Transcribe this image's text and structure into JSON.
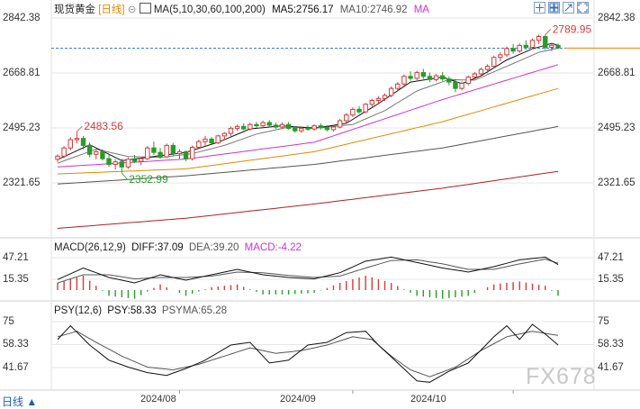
{
  "header": {
    "instrument": "现货黄金",
    "period": "[日线]",
    "ma_label": "MA(5,10,30,60,100,200)",
    "ma5": "MA5:2756.17",
    "ma10": "MA10:2746.92",
    "ma_more": "MA"
  },
  "macd_header": {
    "label": "MACD(26,12,9)",
    "diff": "DIFF:37.09",
    "dea": "DEA:39.20",
    "macd": "MACD:-4.22"
  },
  "psy_header": {
    "label": "PSY(12,6)",
    "psy": "PSY:58.33",
    "psyma": "PSYMA:65.28"
  },
  "bottom": {
    "period_tab": "日线 ▲"
  },
  "watermark": "FX678",
  "colors": {
    "up": "#d23c3c",
    "down": "#2a9a2a",
    "ma5": "#111111",
    "ma10": "#777777",
    "ma30": "#cc33cc",
    "ma60": "#e08a00",
    "ma100": "#555555",
    "ma200": "#b02020",
    "diff": "#111111",
    "dea": "#555555",
    "psy": "#111111",
    "psyma": "#555555",
    "grid": "#e6e6e6",
    "axis": "#999999"
  },
  "chart_data": [
    {
      "type": "candlestick",
      "name": "现货黄金 日线",
      "y_ticks": [
        2842.38,
        2668.81,
        2495.23,
        2321.65
      ],
      "annotations": [
        {
          "text": "2789.95",
          "value": 2789.95,
          "kind": "high"
        },
        {
          "text": "2483.56",
          "value": 2483.56,
          "kind": "high"
        },
        {
          "text": "2352.99",
          "value": 2352.99,
          "kind": "low"
        }
      ],
      "current_price_line": 2746.92,
      "x_ticks": [
        "2024/08",
        "2024/09",
        "2024/10"
      ],
      "x_tick_index": [
        19,
        46,
        71
      ],
      "candles": [
        [
          2396,
          2412,
          2388,
          2406
        ],
        [
          2406,
          2438,
          2400,
          2432
        ],
        [
          2432,
          2466,
          2425,
          2458
        ],
        [
          2458,
          2484,
          2446,
          2462
        ],
        [
          2462,
          2470,
          2428,
          2440
        ],
        [
          2440,
          2450,
          2402,
          2412
        ],
        [
          2412,
          2426,
          2396,
          2420
        ],
        [
          2420,
          2428,
          2392,
          2398
        ],
        [
          2398,
          2410,
          2372,
          2380
        ],
        [
          2380,
          2396,
          2364,
          2388
        ],
        [
          2388,
          2398,
          2353,
          2372
        ],
        [
          2372,
          2402,
          2366,
          2396
        ],
        [
          2396,
          2410,
          2384,
          2390
        ],
        [
          2390,
          2402,
          2378,
          2398
        ],
        [
          2398,
          2438,
          2394,
          2432
        ],
        [
          2432,
          2452,
          2410,
          2418
        ],
        [
          2418,
          2432,
          2398,
          2404
        ],
        [
          2404,
          2446,
          2400,
          2440
        ],
        [
          2440,
          2448,
          2408,
          2414
        ],
        [
          2414,
          2428,
          2398,
          2420
        ],
        [
          2420,
          2424,
          2390,
          2398
        ],
        [
          2398,
          2440,
          2392,
          2434
        ],
        [
          2434,
          2458,
          2428,
          2452
        ],
        [
          2452,
          2470,
          2440,
          2460
        ],
        [
          2460,
          2466,
          2444,
          2448
        ],
        [
          2448,
          2474,
          2444,
          2470
        ],
        [
          2470,
          2482,
          2456,
          2478
        ],
        [
          2478,
          2500,
          2470,
          2494
        ],
        [
          2494,
          2506,
          2486,
          2500
        ],
        [
          2500,
          2510,
          2488,
          2492
        ],
        [
          2492,
          2512,
          2486,
          2506
        ],
        [
          2506,
          2514,
          2496,
          2502
        ],
        [
          2502,
          2518,
          2496,
          2512
        ],
        [
          2512,
          2520,
          2498,
          2504
        ],
        [
          2504,
          2512,
          2492,
          2498
        ],
        [
          2498,
          2512,
          2492,
          2506
        ],
        [
          2506,
          2514,
          2490,
          2494
        ],
        [
          2494,
          2500,
          2480,
          2486
        ],
        [
          2486,
          2498,
          2480,
          2494
        ],
        [
          2494,
          2504,
          2486,
          2492
        ],
        [
          2492,
          2506,
          2486,
          2502
        ],
        [
          2502,
          2510,
          2490,
          2496
        ],
        [
          2496,
          2504,
          2484,
          2490
        ],
        [
          2490,
          2500,
          2484,
          2498
        ],
        [
          2498,
          2524,
          2494,
          2518
        ],
        [
          2518,
          2542,
          2512,
          2536
        ],
        [
          2536,
          2560,
          2530,
          2554
        ],
        [
          2554,
          2564,
          2540,
          2546
        ],
        [
          2546,
          2574,
          2542,
          2570
        ],
        [
          2570,
          2588,
          2562,
          2582
        ],
        [
          2582,
          2596,
          2572,
          2588
        ],
        [
          2588,
          2604,
          2580,
          2598
        ],
        [
          2598,
          2626,
          2592,
          2620
        ],
        [
          2620,
          2640,
          2612,
          2634
        ],
        [
          2634,
          2664,
          2628,
          2658
        ],
        [
          2658,
          2674,
          2644,
          2652
        ],
        [
          2652,
          2676,
          2646,
          2670
        ],
        [
          2670,
          2682,
          2650,
          2658
        ],
        [
          2658,
          2670,
          2640,
          2648
        ],
        [
          2648,
          2666,
          2642,
          2660
        ],
        [
          2660,
          2672,
          2644,
          2650
        ],
        [
          2650,
          2658,
          2630,
          2640
        ],
        [
          2640,
          2650,
          2608,
          2620
        ],
        [
          2620,
          2642,
          2614,
          2636
        ],
        [
          2636,
          2660,
          2630,
          2656
        ],
        [
          2656,
          2672,
          2648,
          2666
        ],
        [
          2666,
          2686,
          2660,
          2680
        ],
        [
          2680,
          2696,
          2668,
          2690
        ],
        [
          2690,
          2724,
          2684,
          2718
        ],
        [
          2718,
          2734,
          2706,
          2726
        ],
        [
          2726,
          2752,
          2720,
          2746
        ],
        [
          2746,
          2760,
          2730,
          2738
        ],
        [
          2738,
          2762,
          2732,
          2756
        ],
        [
          2756,
          2772,
          2742,
          2750
        ],
        [
          2750,
          2778,
          2744,
          2772
        ],
        [
          2772,
          2790,
          2760,
          2784
        ],
        [
          2784,
          2790,
          2742,
          2750
        ],
        [
          2750,
          2762,
          2738,
          2756
        ],
        [
          2756,
          2762,
          2744,
          2748
        ]
      ],
      "ma_series": [
        {
          "name": "MA5",
          "anchors": [
            [
              0,
              2395
            ],
            [
              5,
              2442
            ],
            [
              10,
              2392
            ],
            [
              15,
              2405
            ],
            [
              20,
              2418
            ],
            [
              25,
              2450
            ],
            [
              30,
              2492
            ],
            [
              35,
              2502
            ],
            [
              40,
              2494
            ],
            [
              45,
              2510
            ],
            [
              50,
              2572
            ],
            [
              55,
              2640
            ],
            [
              60,
              2656
            ],
            [
              63,
              2635
            ],
            [
              66,
              2660
            ],
            [
              70,
              2710
            ],
            [
              74,
              2745
            ],
            [
              77,
              2762
            ],
            [
              78,
              2756
            ]
          ]
        },
        {
          "name": "MA10",
          "anchors": [
            [
              0,
              2384
            ],
            [
              6,
              2428
            ],
            [
              11,
              2405
            ],
            [
              16,
              2402
            ],
            [
              21,
              2414
            ],
            [
              26,
              2440
            ],
            [
              31,
              2476
            ],
            [
              36,
              2498
            ],
            [
              41,
              2496
            ],
            [
              46,
              2506
            ],
            [
              51,
              2550
            ],
            [
              56,
              2612
            ],
            [
              61,
              2648
            ],
            [
              65,
              2646
            ],
            [
              70,
              2690
            ],
            [
              75,
              2734
            ],
            [
              78,
              2747
            ]
          ]
        },
        {
          "name": "MA30",
          "anchors": [
            [
              0,
              2372
            ],
            [
              20,
              2397
            ],
            [
              40,
              2450
            ],
            [
              60,
              2585
            ],
            [
              78,
              2695
            ]
          ]
        },
        {
          "name": "MA60",
          "anchors": [
            [
              0,
              2350
            ],
            [
              20,
              2366
            ],
            [
              40,
              2420
            ],
            [
              60,
              2515
            ],
            [
              78,
              2620
            ]
          ]
        },
        {
          "name": "MA100",
          "anchors": [
            [
              0,
              2318
            ],
            [
              20,
              2344
            ],
            [
              40,
              2380
            ],
            [
              60,
              2432
            ],
            [
              78,
              2500
            ]
          ]
        },
        {
          "name": "MA200",
          "anchors": [
            [
              0,
              2178
            ],
            [
              20,
              2210
            ],
            [
              40,
              2255
            ],
            [
              60,
              2305
            ],
            [
              78,
              2358
            ]
          ]
        }
      ]
    },
    {
      "type": "macd",
      "y_ticks": [
        47.21,
        15.35
      ],
      "diff_anchors": [
        [
          0,
          15
        ],
        [
          4,
          32
        ],
        [
          8,
          18
        ],
        [
          12,
          10
        ],
        [
          16,
          22
        ],
        [
          20,
          14
        ],
        [
          24,
          22
        ],
        [
          28,
          30
        ],
        [
          32,
          22
        ],
        [
          36,
          18
        ],
        [
          40,
          16
        ],
        [
          44,
          25
        ],
        [
          48,
          42
        ],
        [
          52,
          48
        ],
        [
          56,
          40
        ],
        [
          60,
          32
        ],
        [
          64,
          26
        ],
        [
          68,
          34
        ],
        [
          72,
          44
        ],
        [
          76,
          48
        ],
        [
          78,
          37
        ]
      ],
      "dea_anchors": [
        [
          0,
          10
        ],
        [
          4,
          22
        ],
        [
          8,
          22
        ],
        [
          12,
          16
        ],
        [
          16,
          18
        ],
        [
          20,
          18
        ],
        [
          24,
          20
        ],
        [
          28,
          26
        ],
        [
          32,
          25
        ],
        [
          36,
          21
        ],
        [
          40,
          18
        ],
        [
          44,
          20
        ],
        [
          48,
          32
        ],
        [
          52,
          43
        ],
        [
          56,
          44
        ],
        [
          60,
          38
        ],
        [
          64,
          30
        ],
        [
          68,
          30
        ],
        [
          72,
          38
        ],
        [
          76,
          45
        ],
        [
          78,
          39
        ]
      ],
      "histogram_anchors": [
        [
          0,
          5
        ],
        [
          4,
          10
        ],
        [
          8,
          -4
        ],
        [
          12,
          -6
        ],
        [
          16,
          4
        ],
        [
          20,
          -4
        ],
        [
          24,
          2
        ],
        [
          28,
          4
        ],
        [
          32,
          -3
        ],
        [
          36,
          -3
        ],
        [
          40,
          -2
        ],
        [
          44,
          5
        ],
        [
          48,
          10
        ],
        [
          52,
          5
        ],
        [
          56,
          -4
        ],
        [
          60,
          -6
        ],
        [
          64,
          -4
        ],
        [
          68,
          4
        ],
        [
          72,
          6
        ],
        [
          76,
          3
        ],
        [
          78,
          -4
        ]
      ]
    },
    {
      "type": "line",
      "name": "PSY",
      "y_ticks": [
        75.0,
        58.33,
        41.67
      ],
      "psy_anchors": [
        [
          0,
          62
        ],
        [
          2,
          72
        ],
        [
          5,
          58
        ],
        [
          8,
          47
        ],
        [
          11,
          42
        ],
        [
          14,
          38
        ],
        [
          17,
          36
        ],
        [
          20,
          41
        ],
        [
          23,
          47
        ],
        [
          27,
          58
        ],
        [
          30,
          60
        ],
        [
          33,
          45
        ],
        [
          36,
          47
        ],
        [
          39,
          58
        ],
        [
          42,
          60
        ],
        [
          45,
          67
        ],
        [
          48,
          68
        ],
        [
          50,
          58
        ],
        [
          53,
          45
        ],
        [
          56,
          32
        ],
        [
          58,
          31
        ],
        [
          61,
          39
        ],
        [
          64,
          45
        ],
        [
          68,
          64
        ],
        [
          70,
          72
        ],
        [
          72,
          62
        ],
        [
          74,
          73
        ],
        [
          76,
          66
        ],
        [
          78,
          58
        ]
      ],
      "psyma_anchors": [
        [
          0,
          64
        ],
        [
          3,
          68
        ],
        [
          6,
          60
        ],
        [
          10,
          50
        ],
        [
          14,
          42
        ],
        [
          18,
          40
        ],
        [
          22,
          44
        ],
        [
          26,
          50
        ],
        [
          30,
          56
        ],
        [
          34,
          52
        ],
        [
          38,
          54
        ],
        [
          42,
          58
        ],
        [
          46,
          64
        ],
        [
          49,
          62
        ],
        [
          52,
          50
        ],
        [
          55,
          40
        ],
        [
          58,
          35
        ],
        [
          62,
          42
        ],
        [
          66,
          54
        ],
        [
          70,
          64
        ],
        [
          74,
          68
        ],
        [
          78,
          65
        ]
      ]
    }
  ]
}
